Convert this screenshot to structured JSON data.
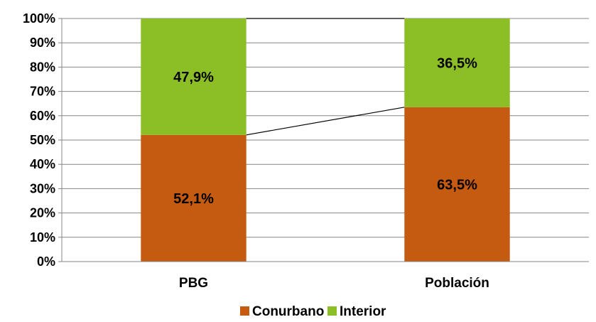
{
  "chart_data": {
    "type": "bar",
    "stacked": true,
    "percent": true,
    "categories": [
      "PBG",
      "Población"
    ],
    "series": [
      {
        "name": "Conurbano",
        "values": [
          52.1,
          63.5
        ],
        "labels": [
          "52,1%",
          "63,5%"
        ],
        "color": "#c55a11"
      },
      {
        "name": "Interior",
        "values": [
          47.9,
          36.5
        ],
        "labels": [
          "47,9%",
          "36,5%"
        ],
        "color": "#8cbf26"
      }
    ],
    "yticks": [
      "0%",
      "10%",
      "20%",
      "30%",
      "40%",
      "50%",
      "60%",
      "70%",
      "80%",
      "90%",
      "100%"
    ],
    "ylim": [
      0,
      100
    ],
    "grid": true,
    "series_lines": true,
    "legend_position": "bottom",
    "title": "",
    "xlabel": "",
    "ylabel": ""
  }
}
